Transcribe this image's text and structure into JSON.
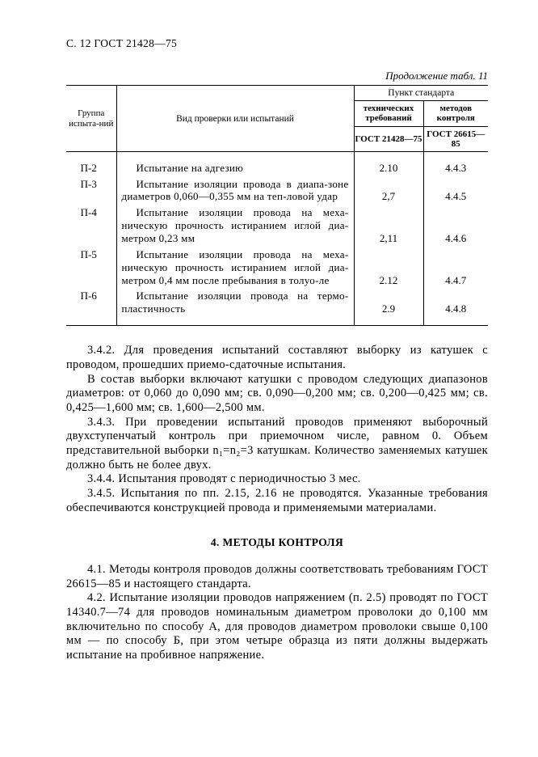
{
  "header": {
    "page_label": "С. 12 ГОСТ 21428—75"
  },
  "table": {
    "caption": "Продолжение табл. 11",
    "col_group_label": "Группа испыта-ний",
    "col_test_label": "Вид проверки или испытаний",
    "col_standard_label": "Пункт стандарта",
    "sub_tech": "технических требований",
    "sub_meth": "методов контроля",
    "gost_a": "ГОСТ 21428—75",
    "gost_b": "ГОСТ 26615—85",
    "rows": [
      {
        "group": "П-2",
        "desc": "Испытание на адгезию",
        "a": "2.10",
        "b": "4.4.3",
        "type": "single"
      },
      {
        "group": "П-3",
        "desc": "Испытание изоляции провода в диапа-зоне диаметров 0,060—0,355 мм на теп-ловой удар",
        "a": "2,7",
        "b": "4.4.5",
        "type": "multi"
      },
      {
        "group": "П-4",
        "desc": "Испытание изоляции провода на меха-ническую прочность истиранием иглой диа-метром 0,23 мм",
        "a": "2,11",
        "b": "4.4.6",
        "type": "multi"
      },
      {
        "group": "П-5",
        "desc": "Испытание изоляции провода на меха-ническую прочность истиранием иглой диа-метром 0,4 мм после пребывания в толуо-ле",
        "a": "2.12",
        "b": "4.4.7",
        "type": "multi"
      },
      {
        "group": "П-6",
        "desc": "Испытание изоляции провода на термо-пластичность",
        "a": "2.9",
        "b": "4.4.8",
        "type": "multi"
      }
    ]
  },
  "paragraphs": [
    "3.4.2. Для проведения испытаний составляют выборку из катушек с проводом, прошедших приемо-сдаточные испытания.",
    "В состав выборки включают катушки с проводом следующих диапазонов диаметров: от 0,060 до 0,090 мм; св. 0,090—0,200 мм; св. 0,200—0,425 мм; св. 0,425—1,600 мм; св. 1,600—2,500 мм.",
    "3.4.3. При проведении испытаний проводов применяют выборочный двухступенчатый контроль при приемочном числе, равном 0. Объем представительной выборки n₁=n₂=3 катушкам. Количество заменяемых катушек должно быть не более двух.",
    "3.4.4. Испытания проводят с периодичностью 3 мес.",
    "3.4.5. Испытания по пп. 2.15, 2.16 не проводятся. Указанные требования обеспечиваются конструкцией провода и применяемыми материалами."
  ],
  "section_title": "4. МЕТОДЫ КОНТРОЛЯ",
  "paragraphs2": [
    "4.1. Методы контроля проводов должны соответствовать требованиям ГОСТ 26615—85 и настоящего стандарта.",
    "4.2. Испытание изоляции проводов напряжением (п. 2.5) проводят по ГОСТ 14340.7—74 для проводов номинальным диаметром проволоки до 0,100 мм включительно по способу А, для проводов диаметром проволоки свыше 0,100 мм — по способу Б, при этом четыре образца из пяти должны выдержать испытание на пробивное напряжение."
  ]
}
